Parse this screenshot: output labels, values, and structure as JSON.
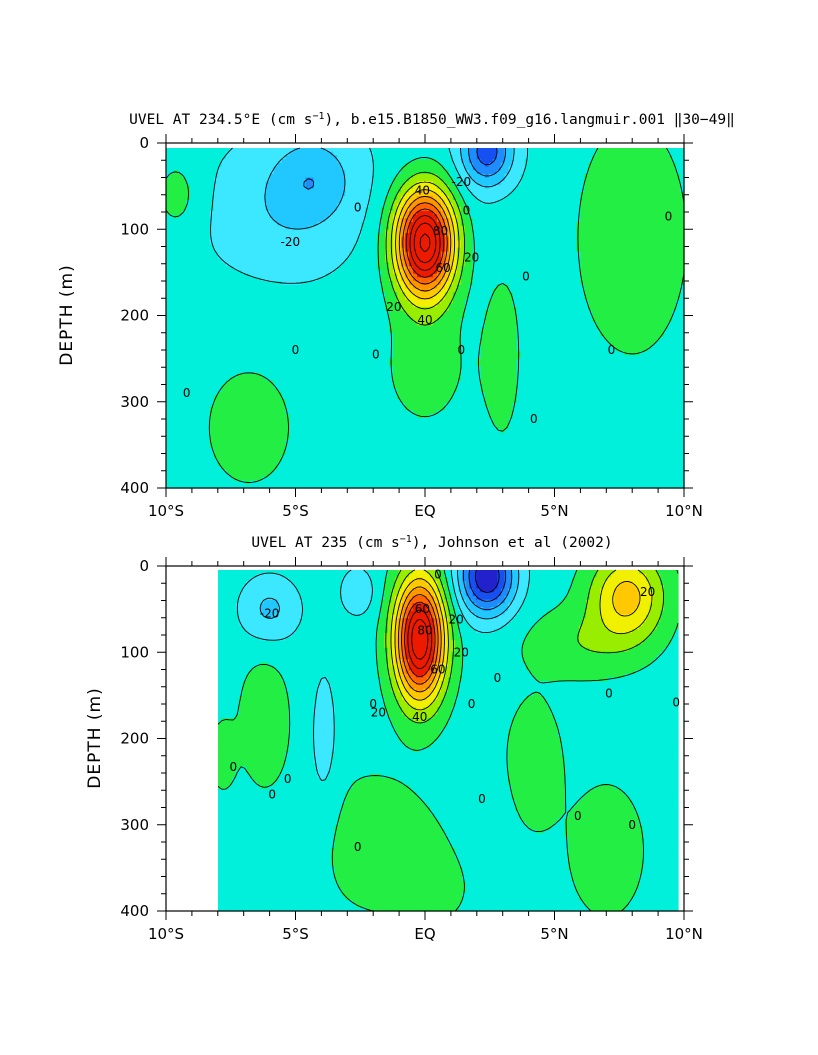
{
  "chart_data": [
    {
      "type": "contour",
      "title_prefix": "UVEL AT 234.5°E (cm s",
      "title_sup": "−1",
      "title_suffix": "), b.e15.B1850_WW3.f09_g16.langmuir.001 ‖30−49‖",
      "xlabel": "",
      "ylabel": "DEPTH (m)",
      "xlim": [
        -10,
        10
      ],
      "ylim": [
        400,
        0
      ],
      "xticks": [
        -10,
        -5,
        0,
        5,
        10
      ],
      "xtick_labels": [
        "10°S",
        "5°S",
        "EQ",
        "5°N",
        "10°N"
      ],
      "yticks": [
        0,
        100,
        200,
        300,
        400
      ],
      "ytick_labels": [
        "0",
        "100",
        "200",
        "300",
        "400"
      ],
      "contour_interval": 10,
      "units": "cm s-1",
      "max_value": 90,
      "max_location": {
        "lat": 0.0,
        "depth": 115
      },
      "min_value": -40,
      "min_location": {
        "lat": 2.5,
        "depth": 10
      },
      "contour_labels": [
        {
          "text": "40",
          "lat": -0.1,
          "depth": 55
        },
        {
          "text": "80",
          "lat": 0.6,
          "depth": 102
        },
        {
          "text": "60",
          "lat": 0.7,
          "depth": 145
        },
        {
          "text": "20",
          "lat": 1.8,
          "depth": 133
        },
        {
          "text": "20",
          "lat": -1.2,
          "depth": 190
        },
        {
          "text": "40",
          "lat": 0.0,
          "depth": 205
        },
        {
          "text": "-20",
          "lat": -5.2,
          "depth": 115
        },
        {
          "text": "-20",
          "lat": 1.4,
          "depth": 45
        },
        {
          "text": "0",
          "lat": -2.6,
          "depth": 75
        },
        {
          "text": "0",
          "lat": 1.6,
          "depth": 78
        },
        {
          "text": "0",
          "lat": 3.9,
          "depth": 155
        },
        {
          "text": "0",
          "lat": 9.4,
          "depth": 85
        },
        {
          "text": "0",
          "lat": -5.0,
          "depth": 240
        },
        {
          "text": "0",
          "lat": -1.9,
          "depth": 245
        },
        {
          "text": "0",
          "lat": 1.4,
          "depth": 240
        },
        {
          "text": "0",
          "lat": 7.2,
          "depth": 240
        },
        {
          "text": "0",
          "lat": -9.2,
          "depth": 290
        },
        {
          "text": "0",
          "lat": 4.2,
          "depth": 320
        }
      ]
    },
    {
      "type": "contour",
      "title_prefix": "UVEL AT 235 (cm s",
      "title_sup": "−1",
      "title_suffix": "), Johnson et al (2002)",
      "xlabel": "",
      "ylabel": "DEPTH (m)",
      "xlim": [
        -10,
        10
      ],
      "ylim": [
        400,
        0
      ],
      "xticks": [
        -10,
        -5,
        0,
        5,
        10
      ],
      "xtick_labels": [
        "10°S",
        "5°S",
        "EQ",
        "5°N",
        "10°N"
      ],
      "yticks": [
        0,
        100,
        200,
        300,
        400
      ],
      "ytick_labels": [
        "0",
        "100",
        "200",
        "300",
        "400"
      ],
      "contour_interval": 10,
      "units": "cm s-1",
      "data_extent_lat": [
        -8,
        9.8
      ],
      "max_value": 90,
      "max_location": {
        "lat": -0.2,
        "depth": 85
      },
      "min_value": -60,
      "min_location": {
        "lat": 2.4,
        "depth": 15
      },
      "contour_labels": [
        {
          "text": "-20",
          "lat": -6.0,
          "depth": 55
        },
        {
          "text": "0",
          "lat": 0.5,
          "depth": 10
        },
        {
          "text": "60",
          "lat": -0.1,
          "depth": 50
        },
        {
          "text": "80",
          "lat": 0.0,
          "depth": 75
        },
        {
          "text": "20",
          "lat": 1.2,
          "depth": 62
        },
        {
          "text": "60",
          "lat": 0.5,
          "depth": 120
        },
        {
          "text": "20",
          "lat": 1.4,
          "depth": 100
        },
        {
          "text": "20",
          "lat": -1.8,
          "depth": 170
        },
        {
          "text": "40",
          "lat": -0.2,
          "depth": 175
        },
        {
          "text": "20",
          "lat": 8.6,
          "depth": 30
        },
        {
          "text": "0",
          "lat": -2.0,
          "depth": 160
        },
        {
          "text": "0",
          "lat": 1.8,
          "depth": 160
        },
        {
          "text": "0",
          "lat": 2.8,
          "depth": 130
        },
        {
          "text": "0",
          "lat": 7.1,
          "depth": 148
        },
        {
          "text": "0",
          "lat": 9.7,
          "depth": 158
        },
        {
          "text": "0",
          "lat": -7.4,
          "depth": 233
        },
        {
          "text": "0",
          "lat": -5.3,
          "depth": 247
        },
        {
          "text": "0",
          "lat": -5.9,
          "depth": 265
        },
        {
          "text": "0",
          "lat": 2.2,
          "depth": 270
        },
        {
          "text": "0",
          "lat": 5.9,
          "depth": 290
        },
        {
          "text": "0",
          "lat": 8.0,
          "depth": 300
        },
        {
          "text": "0",
          "lat": -2.6,
          "depth": 326
        }
      ]
    }
  ],
  "colorscale": [
    {
      "max": -50,
      "color": "#2222cc"
    },
    {
      "max": -40,
      "color": "#1650f0"
    },
    {
      "max": -30,
      "color": "#1e8cff"
    },
    {
      "max": -20,
      "color": "#20c8ff"
    },
    {
      "max": -10,
      "color": "#3ce8ff"
    },
    {
      "max": 0,
      "color": "#00f0dc"
    },
    {
      "max": 10,
      "color": "#22ee44"
    },
    {
      "max": 20,
      "color": "#99ee00"
    },
    {
      "max": 30,
      "color": "#f0f000"
    },
    {
      "max": 40,
      "color": "#ffc800"
    },
    {
      "max": 50,
      "color": "#ff9600"
    },
    {
      "max": 60,
      "color": "#ff6400"
    },
    {
      "max": 999,
      "color": "#ee1a00"
    }
  ]
}
